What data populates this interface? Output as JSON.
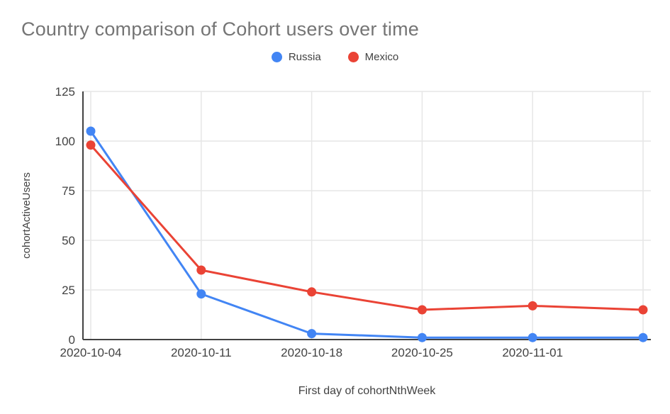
{
  "chart_data": {
    "type": "line",
    "title": "Country comparison of Cohort users over time",
    "xlabel": "First day of cohortNthWeek",
    "ylabel": "cohortActiveUsers",
    "ylim": [
      0,
      125
    ],
    "yticks": [
      0,
      25,
      50,
      75,
      100,
      125
    ],
    "categories": [
      "2020-10-04",
      "2020-10-11",
      "2020-10-18",
      "2020-10-25",
      "2020-11-01",
      ""
    ],
    "series": [
      {
        "name": "Russia",
        "color": "#4285F4",
        "values": [
          105,
          23,
          3,
          1,
          1,
          1
        ]
      },
      {
        "name": "Mexico",
        "color": "#EA4335",
        "values": [
          98,
          35,
          24,
          15,
          17,
          15
        ]
      }
    ],
    "legend_position": "top",
    "grid": true,
    "colors": {
      "title": "#757575",
      "axis_text": "#424242",
      "axis_line": "#424242",
      "gridline": "#e6e6e6",
      "background": "#ffffff"
    }
  }
}
